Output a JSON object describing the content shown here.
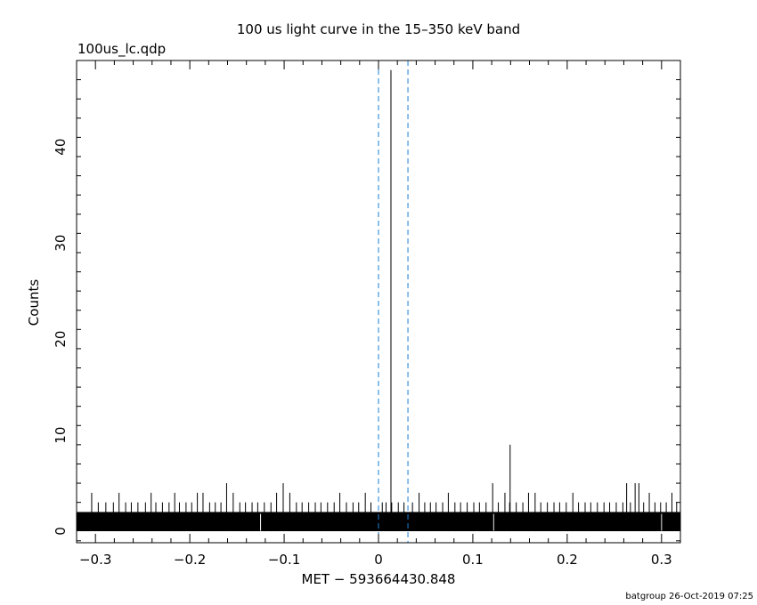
{
  "chart_data": {
    "type": "line",
    "title": "100 us light curve in the 15–350 keV band",
    "file_label": "100us_lc.qdp",
    "xlabel": "MET − 593664430.848",
    "ylabel": "Counts",
    "footer": "batgroup 26-Oct-2019 07:25",
    "xlim": [
      -0.32,
      0.32
    ],
    "ylim": [
      -1.2,
      49
    ],
    "xticks": [
      -0.3,
      -0.2,
      -0.1,
      0,
      0.1,
      0.2,
      0.3
    ],
    "xtick_labels": [
      "−0.3",
      "−0.2",
      "−0.1",
      "0",
      "0.1",
      "0.2",
      "0.3"
    ],
    "yticks": [
      0,
      10,
      20,
      30,
      40
    ],
    "ytick_labels": [
      "0",
      "10",
      "20",
      "30",
      "40"
    ],
    "bin_width": 0.0001,
    "baseline_band": [
      0,
      2
    ],
    "vertical_lines": [
      {
        "x": 0.0,
        "style": "dashed",
        "color": "#1a7fd4"
      },
      {
        "x": 0.0312,
        "style": "dashed",
        "color": "#1a7fd4"
      }
    ],
    "series": [
      {
        "values_note": "",
        "x": [
          -0.304,
          -0.297,
          -0.289,
          -0.281,
          -0.275,
          -0.268,
          -0.262,
          -0.255,
          -0.247,
          -0.241,
          -0.236,
          -0.229,
          -0.222,
          -0.216,
          -0.211,
          -0.204,
          -0.198,
          -0.192,
          -0.186,
          -0.179,
          -0.173,
          -0.167,
          -0.161,
          -0.154,
          -0.147,
          -0.141,
          -0.134,
          -0.128,
          -0.121,
          -0.114,
          -0.108,
          -0.101,
          -0.094,
          -0.087,
          -0.081,
          -0.074,
          -0.067,
          -0.061,
          -0.054,
          -0.047,
          -0.041,
          -0.034,
          -0.027,
          -0.021,
          -0.014,
          -0.008,
          0.004,
          0.008,
          0.014,
          0.021,
          0.027,
          0.036,
          0.043,
          0.049,
          0.055,
          0.061,
          0.068,
          0.074,
          0.081,
          0.087,
          0.094,
          0.101,
          0.107,
          0.114,
          0.121,
          0.127,
          0.134,
          0.139,
          0.146,
          0.153,
          0.159,
          0.166,
          0.172,
          0.179,
          0.186,
          0.192,
          0.199,
          0.206,
          0.212,
          0.219,
          0.225,
          0.232,
          0.239,
          0.245,
          0.252,
          0.259,
          0.263,
          0.267,
          0.272,
          0.276,
          0.281,
          0.287,
          0.293,
          0.299,
          0.305,
          0.311,
          0.316
        ],
        "values": [
          4,
          3,
          3,
          3,
          4,
          3,
          3,
          3,
          3,
          4,
          3,
          3,
          3,
          4,
          3,
          3,
          3,
          4,
          4,
          3,
          3,
          3,
          5,
          4,
          3,
          3,
          3,
          3,
          3,
          3,
          4,
          5,
          4,
          3,
          3,
          3,
          3,
          3,
          3,
          3,
          4,
          3,
          3,
          3,
          4,
          3,
          3,
          3,
          3,
          3,
          3,
          3,
          4,
          3,
          3,
          3,
          3,
          4,
          3,
          3,
          3,
          3,
          3,
          3,
          5,
          3,
          4,
          3,
          3,
          3,
          4,
          4,
          3,
          3,
          3,
          3,
          3,
          4,
          3,
          3,
          3,
          3,
          3,
          3,
          3,
          3,
          5,
          3,
          5,
          5,
          3,
          4,
          3,
          3,
          3,
          4,
          3
        ]
      },
      {
        "values_note": "",
        "x": [
          0.0132
        ],
        "values": [
          48
        ]
      },
      {
        "values_note": "",
        "x": [
          0.1395
        ],
        "values": [
          9
        ]
      }
    ],
    "grid": false,
    "legend": "none"
  }
}
